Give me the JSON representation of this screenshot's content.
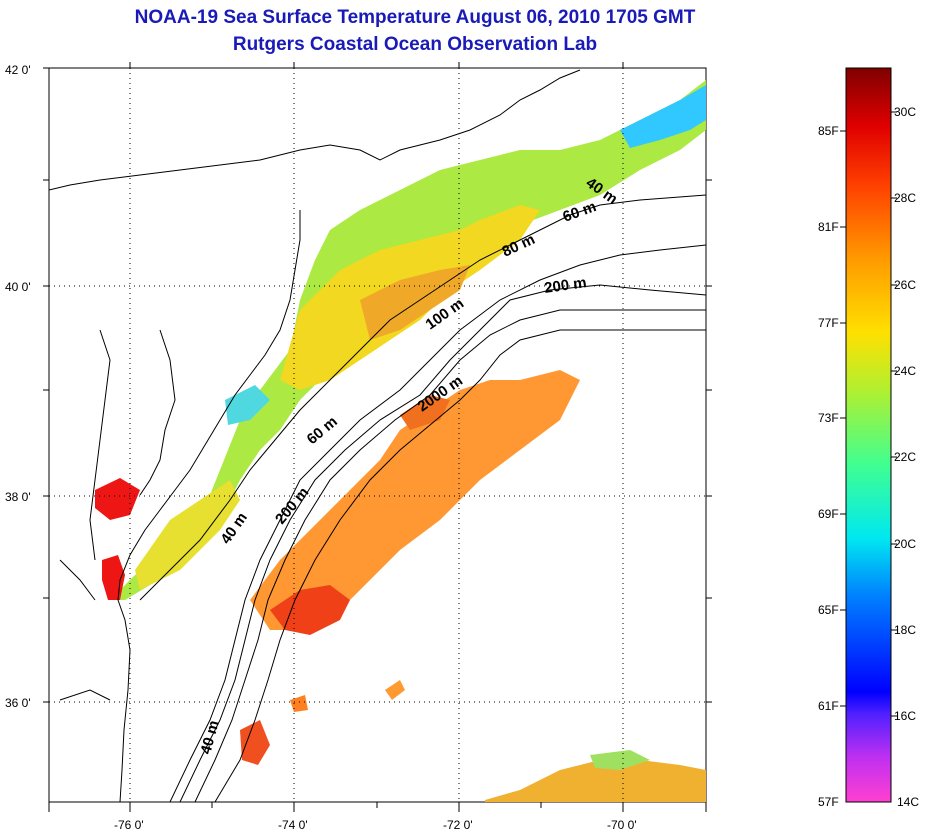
{
  "title": {
    "line1": "NOAA-19 Sea Surface Temperature August 06, 2010 1705 GMT",
    "line2": "Rutgers Coastal Ocean Observation Lab"
  },
  "map": {
    "lon_labels": [
      "-76 0'",
      "-74 0'",
      "-72 0'",
      "-70 0'"
    ],
    "lat_labels": [
      "42 0'",
      "40 0'",
      "38 0'",
      "36 0'"
    ],
    "isobath_labels": [
      "40 m",
      "60 m",
      "80 m",
      "200 m",
      "100 m",
      "2000 m",
      "60 m",
      "200 m",
      "40 m",
      "40 m"
    ],
    "grid": true
  },
  "colorbar": {
    "fahrenheit_labels": [
      "85F",
      "81F",
      "77F",
      "73F",
      "69F",
      "65F",
      "61F",
      "57F"
    ],
    "celsius_labels": [
      "30C",
      "28C",
      "26C",
      "24C",
      "22C",
      "20C",
      "18C",
      "16C",
      "14C"
    ],
    "colors": [
      "#800000",
      "#ff1010",
      "#ff7000",
      "#ffd000",
      "#c8f020",
      "#40ff80",
      "#00e0f0",
      "#0060ff",
      "#0000ff",
      "#b020f0",
      "#ff40d0"
    ]
  },
  "sst_colors": {
    "cold": "#40d0ff",
    "green": "#90f040",
    "yellow": "#f0e020",
    "orange": "#ff9a20",
    "red": "#f01818"
  }
}
